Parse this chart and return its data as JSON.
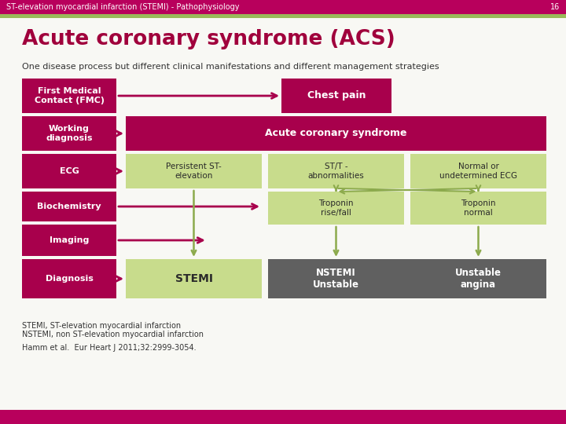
{
  "header_text": "ST-elevation myocardial infarction (STEMI) - Pathophysiology",
  "header_num": "16",
  "header_bg": "#b8005c",
  "header_stripe": "#9aba5a",
  "title": "Acute coronary syndrome (ACS)",
  "title_color": "#a0003c",
  "subtitle": "One disease process but different clinical manifestations and different management strategies",
  "subtitle_color": "#333333",
  "crimson": "#a8004c",
  "light_green": "#c8dc8c",
  "dark_gray": "#606060",
  "white": "#ffffff",
  "bg": "#f8f8f4",
  "footnote1": "STEMI, ST-elevation myocardial infarction",
  "footnote2": "NSTEMI, non ST-elevation myocardial infarction",
  "footnote3": "Hamm et al.  Eur Heart J 2011;32:2999-3054.",
  "left_labels": [
    "First Medical\nContact (FMC)",
    "Working\ndiagnosis",
    "ECG",
    "Biochemistry",
    "Imaging",
    "Diagnosis"
  ],
  "chest_pain_text": "Chest pain",
  "acs_text": "Acute coronary syndrome",
  "ecg_col1": "Persistent ST-\nelevation",
  "ecg_col2": "ST/T -\nabnormalities",
  "ecg_col3": "Normal or\nundetermined ECG",
  "bio_col2": "Troponin\nrise/fall",
  "bio_col3": "Troponin\nnormal",
  "diag_col1": "STEMI",
  "diag_col2": "NSTEMI\nUnstable",
  "diag_col3": "Unstable\nangina",
  "arrow_color": "#a8004c",
  "green_arrow": "#8caa4c"
}
